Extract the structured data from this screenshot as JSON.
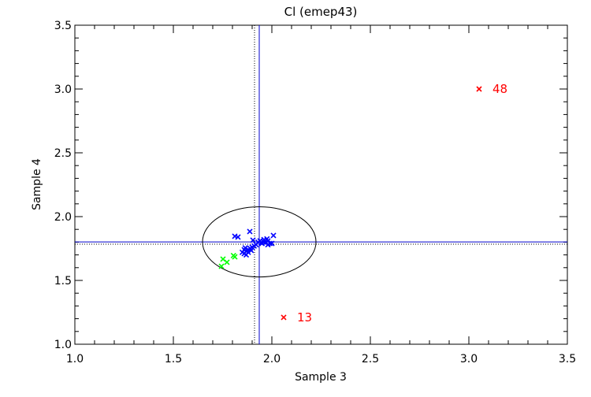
{
  "chart_data": {
    "type": "scatter",
    "title": "Cl (emep43)",
    "xlabel": "Sample 3",
    "ylabel": "Sample 4",
    "xlim": [
      1.0,
      3.5
    ],
    "ylim": [
      1.0,
      3.5
    ],
    "xticks": [
      "1.0",
      "1.5",
      "2.0",
      "2.5",
      "3.0",
      "3.5"
    ],
    "yticks": [
      "1.0",
      "1.5",
      "2.0",
      "2.5",
      "3.0",
      "3.5"
    ],
    "grid": false,
    "marker": "x",
    "reference_lines": {
      "solid": {
        "x": 1.936,
        "y": 1.802,
        "color": "#0000cc"
      },
      "dotted": {
        "x": 1.912,
        "y": 1.784,
        "color": "#000000"
      }
    },
    "ellipse": {
      "center": [
        1.936,
        1.802
      ],
      "semi_x": 0.288,
      "semi_y": 0.275,
      "color": "#000000"
    },
    "series": [
      {
        "color": "#0000ff",
        "points": [
          [
            1.812,
            1.846
          ],
          [
            1.828,
            1.84
          ],
          [
            1.888,
            1.883
          ],
          [
            2.008,
            1.852
          ],
          [
            1.904,
            1.815
          ],
          [
            1.93,
            1.8
          ],
          [
            1.94,
            1.81
          ],
          [
            1.95,
            1.79
          ],
          [
            1.96,
            1.82
          ],
          [
            1.97,
            1.8
          ],
          [
            1.98,
            1.81
          ],
          [
            1.99,
            1.79
          ],
          [
            1.96,
            1.8
          ],
          [
            1.945,
            1.795
          ],
          [
            1.975,
            1.825
          ],
          [
            1.92,
            1.78
          ],
          [
            1.91,
            1.77
          ],
          [
            1.9,
            1.76
          ],
          [
            1.89,
            1.75
          ],
          [
            1.88,
            1.74
          ],
          [
            1.87,
            1.73
          ],
          [
            1.86,
            1.74
          ],
          [
            1.85,
            1.72
          ],
          [
            1.86,
            1.71
          ],
          [
            1.87,
            1.7
          ],
          [
            1.88,
            1.72
          ],
          [
            1.895,
            1.735
          ],
          [
            1.865,
            1.755
          ],
          [
            1.98,
            1.78
          ],
          [
            2.0,
            1.79
          ]
        ]
      },
      {
        "color": "#00ff00",
        "points": [
          [
            1.752,
            1.667
          ],
          [
            1.772,
            1.642
          ],
          [
            1.744,
            1.611
          ],
          [
            1.812,
            1.685
          ],
          [
            1.805,
            1.695
          ]
        ]
      },
      {
        "color": "#ff0000",
        "points": [
          [
            3.052,
            3.0
          ],
          [
            2.06,
            1.21
          ]
        ],
        "labels": [
          "48",
          "13"
        ]
      }
    ]
  }
}
